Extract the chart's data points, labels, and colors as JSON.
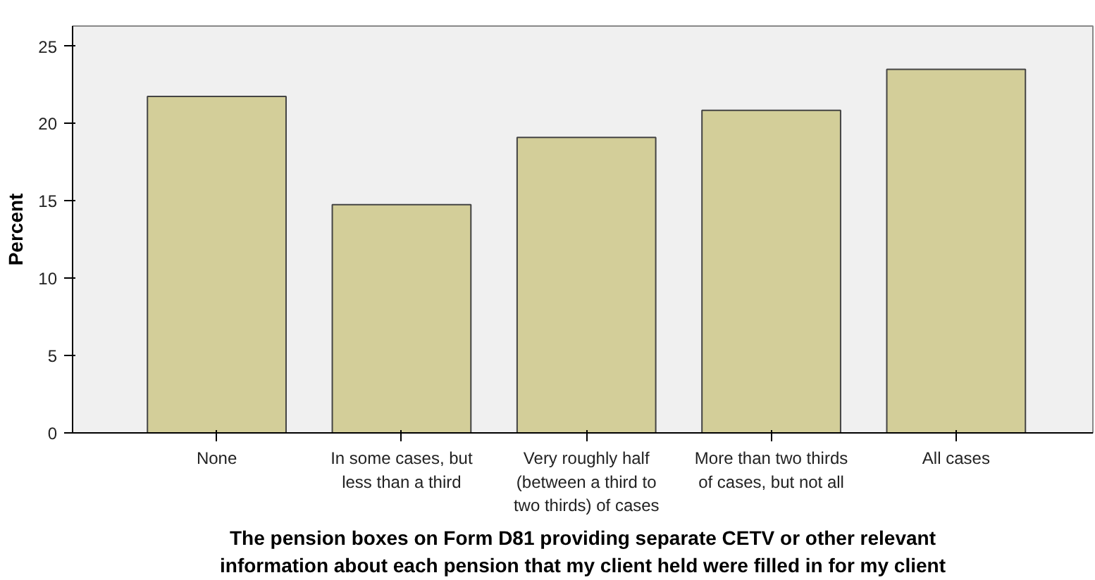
{
  "chart_data": {
    "type": "bar",
    "categories": [
      "None",
      "In some cases, but\nless than a third",
      "Very roughly half\n(between a third to\ntwo thirds) of cases",
      "More than two thirds\nof cases, but not all",
      "All cases"
    ],
    "values": [
      21.75,
      14.75,
      19.1,
      20.85,
      23.5
    ],
    "color": "#d3ce99",
    "ylabel": "Percent",
    "xlabel": "The pension boxes on Form D81 providing separate CETV or other relevant\ninformation about each pension that my client held were filled in for my client",
    "ylim": [
      0,
      26.3
    ],
    "yticks": [
      0,
      5,
      10,
      15,
      20,
      25
    ],
    "grid": false
  }
}
